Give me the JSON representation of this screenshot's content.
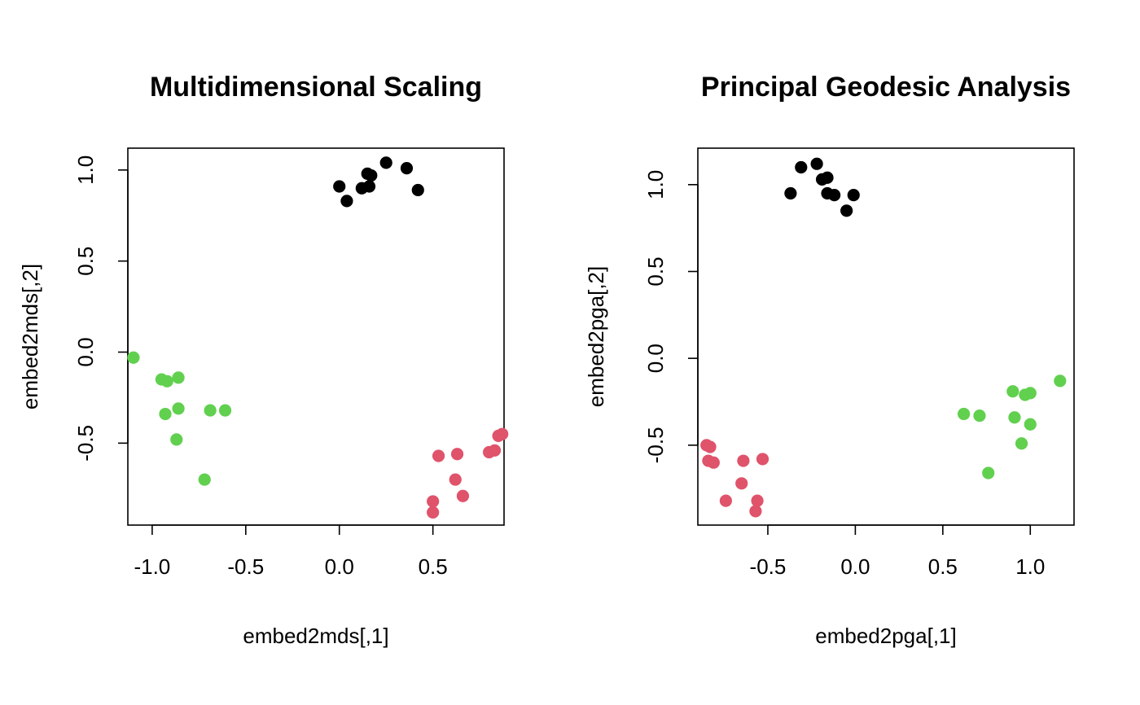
{
  "chart_data": [
    {
      "type": "scatter",
      "title": "Multidimensional Scaling",
      "xlabel": "embed2mds[,1]",
      "ylabel": "embed2mds[,2]",
      "xlim": [
        -1.13,
        0.88
      ],
      "ylim": [
        -0.95,
        1.12
      ],
      "xticks": [
        -1.0,
        -0.5,
        0.0,
        0.5
      ],
      "xtick_labels": [
        "-1.0",
        "-0.5",
        "0.0",
        "0.5"
      ],
      "yticks": [
        -0.5,
        0.0,
        0.5,
        1.0
      ],
      "ytick_labels": [
        "-0.5",
        "0.0",
        "0.5",
        "1.0"
      ],
      "grid": false,
      "series": [
        {
          "color": "#000000",
          "points": [
            [
              0.0,
              0.91
            ],
            [
              0.04,
              0.83
            ],
            [
              0.12,
              0.9
            ],
            [
              0.15,
              0.98
            ],
            [
              0.17,
              0.97
            ],
            [
              0.16,
              0.91
            ],
            [
              0.25,
              1.04
            ],
            [
              0.36,
              1.01
            ],
            [
              0.42,
              0.89
            ]
          ]
        },
        {
          "color": "#DF536B",
          "points": [
            [
              0.53,
              -0.57
            ],
            [
              0.63,
              -0.56
            ],
            [
              0.8,
              -0.55
            ],
            [
              0.83,
              -0.54
            ],
            [
              0.85,
              -0.46
            ],
            [
              0.87,
              -0.45
            ],
            [
              0.62,
              -0.7
            ],
            [
              0.66,
              -0.79
            ],
            [
              0.5,
              -0.82
            ],
            [
              0.5,
              -0.88
            ]
          ]
        },
        {
          "color": "#61D04F",
          "points": [
            [
              -1.1,
              -0.03
            ],
            [
              -0.95,
              -0.15
            ],
            [
              -0.92,
              -0.16
            ],
            [
              -0.86,
              -0.14
            ],
            [
              -0.86,
              -0.31
            ],
            [
              -0.93,
              -0.34
            ],
            [
              -0.69,
              -0.32
            ],
            [
              -0.61,
              -0.32
            ],
            [
              -0.87,
              -0.48
            ],
            [
              -0.72,
              -0.7
            ]
          ]
        }
      ]
    },
    {
      "type": "scatter",
      "title": "Principal Geodesic Analysis",
      "xlabel": "embed2pga[,1]",
      "ylabel": "embed2pga[,2]",
      "xlim": [
        -0.9,
        1.25
      ],
      "ylim": [
        -0.96,
        1.21
      ],
      "xticks": [
        -0.5,
        0.0,
        0.5,
        1.0
      ],
      "xtick_labels": [
        "-0.5",
        "0.0",
        "0.5",
        "1.0"
      ],
      "yticks": [
        -0.5,
        0.0,
        0.5,
        1.0
      ],
      "ytick_labels": [
        "-0.5",
        "0.0",
        "0.5",
        "1.0"
      ],
      "grid": false,
      "series": [
        {
          "color": "#000000",
          "points": [
            [
              -0.37,
              0.95
            ],
            [
              -0.31,
              1.1
            ],
            [
              -0.22,
              1.12
            ],
            [
              -0.19,
              1.03
            ],
            [
              -0.16,
              1.04
            ],
            [
              -0.16,
              0.95
            ],
            [
              -0.12,
              0.94
            ],
            [
              -0.01,
              0.94
            ],
            [
              -0.05,
              0.85
            ]
          ]
        },
        {
          "color": "#DF536B",
          "points": [
            [
              -0.85,
              -0.5
            ],
            [
              -0.83,
              -0.51
            ],
            [
              -0.84,
              -0.59
            ],
            [
              -0.81,
              -0.6
            ],
            [
              -0.64,
              -0.59
            ],
            [
              -0.53,
              -0.58
            ],
            [
              -0.65,
              -0.72
            ],
            [
              -0.74,
              -0.82
            ],
            [
              -0.56,
              -0.82
            ],
            [
              -0.57,
              -0.88
            ]
          ]
        },
        {
          "color": "#61D04F",
          "points": [
            [
              1.17,
              -0.13
            ],
            [
              0.9,
              -0.19
            ],
            [
              0.97,
              -0.21
            ],
            [
              1.0,
              -0.2
            ],
            [
              0.62,
              -0.32
            ],
            [
              0.71,
              -0.33
            ],
            [
              0.91,
              -0.34
            ],
            [
              1.0,
              -0.38
            ],
            [
              0.95,
              -0.49
            ],
            [
              0.76,
              -0.66
            ]
          ]
        }
      ]
    }
  ]
}
